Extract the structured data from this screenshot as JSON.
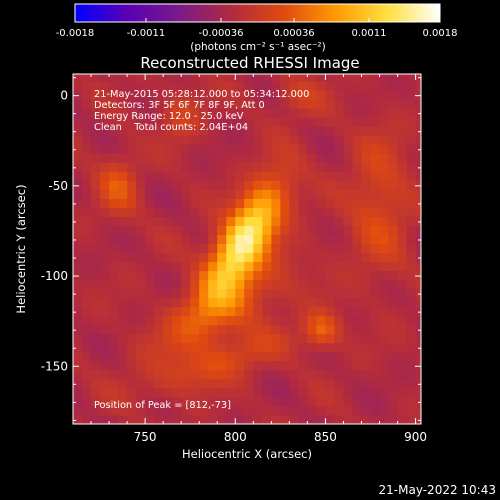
{
  "chart_data": {
    "type": "heatmap",
    "title": "Reconstructed RHESSI Image",
    "xlabel": "Heliocentric X (arcsec)",
    "ylabel": "Heliocentric Y (arcsec)",
    "xlim": [
      710,
      903
    ],
    "ylim": [
      -182,
      12
    ],
    "x_ticks": [
      750,
      800,
      850,
      900
    ],
    "y_ticks": [
      0,
      -50,
      -100,
      -150
    ],
    "colorbar": {
      "range": [
        -0.0018,
        0.0018
      ],
      "tick_values": [
        -0.0018,
        -0.0011,
        -0.00036,
        0.00036,
        0.0011,
        0.0018
      ],
      "tick_labels": [
        "-0.0018",
        "-0.0011",
        "-0.00036",
        "0.00036",
        "0.0011",
        "0.0018"
      ],
      "unit_label": "(photons cm⁻² s⁻¹ asec⁻²)",
      "colors": [
        "#0000ff",
        "#5a00b4",
        "#7a1a8a",
        "#b02a40",
        "#e04a10",
        "#ff9a00",
        "#ffe040",
        "#ffffff"
      ]
    },
    "annotations": {
      "time_range": "21-May-2015 05:28:12.000 to 05:34:12.000",
      "detectors": "Detectors: 3F 5F 6F 7F 8F 9F, Att 0",
      "energy_range": "Energy Range: 12.0 - 25.0 keV",
      "clean_counts": "Clean    Total counts: 2.04E+04",
      "peak_position": "Position of Peak = [812,-73]"
    },
    "peak": {
      "x": 812,
      "y": -73
    },
    "sources": [
      {
        "x": 805,
        "y": -80,
        "sx": 9,
        "sy": 25,
        "angle_deg": -30,
        "amp": 0.0018
      },
      {
        "x": 793,
        "y": -118,
        "sx": 30,
        "sy": 11,
        "angle_deg": 30,
        "amp": 0.00055
      },
      {
        "x": 848,
        "y": -130,
        "sx": 7,
        "sy": 7,
        "angle_deg": 0,
        "amp": 0.00065
      },
      {
        "x": 735,
        "y": -50,
        "sx": 8,
        "sy": 12,
        "angle_deg": 0,
        "amp": 0.0005
      },
      {
        "x": 880,
        "y": -60,
        "sx": 12,
        "sy": 28,
        "angle_deg": 0,
        "amp": 0.00045
      },
      {
        "x": 790,
        "y": -148,
        "sx": 28,
        "sy": 8,
        "angle_deg": 20,
        "amp": 0.00045
      },
      {
        "x": 770,
        "y": -10,
        "sx": 8,
        "sy": 10,
        "angle_deg": 0,
        "amp": 0.00035
      },
      {
        "x": 835,
        "y": 0,
        "sx": 10,
        "sy": 8,
        "angle_deg": 0,
        "amp": 0.0003
      }
    ]
  },
  "footer": {
    "date_stamp": "21-May-2022 10:43"
  }
}
